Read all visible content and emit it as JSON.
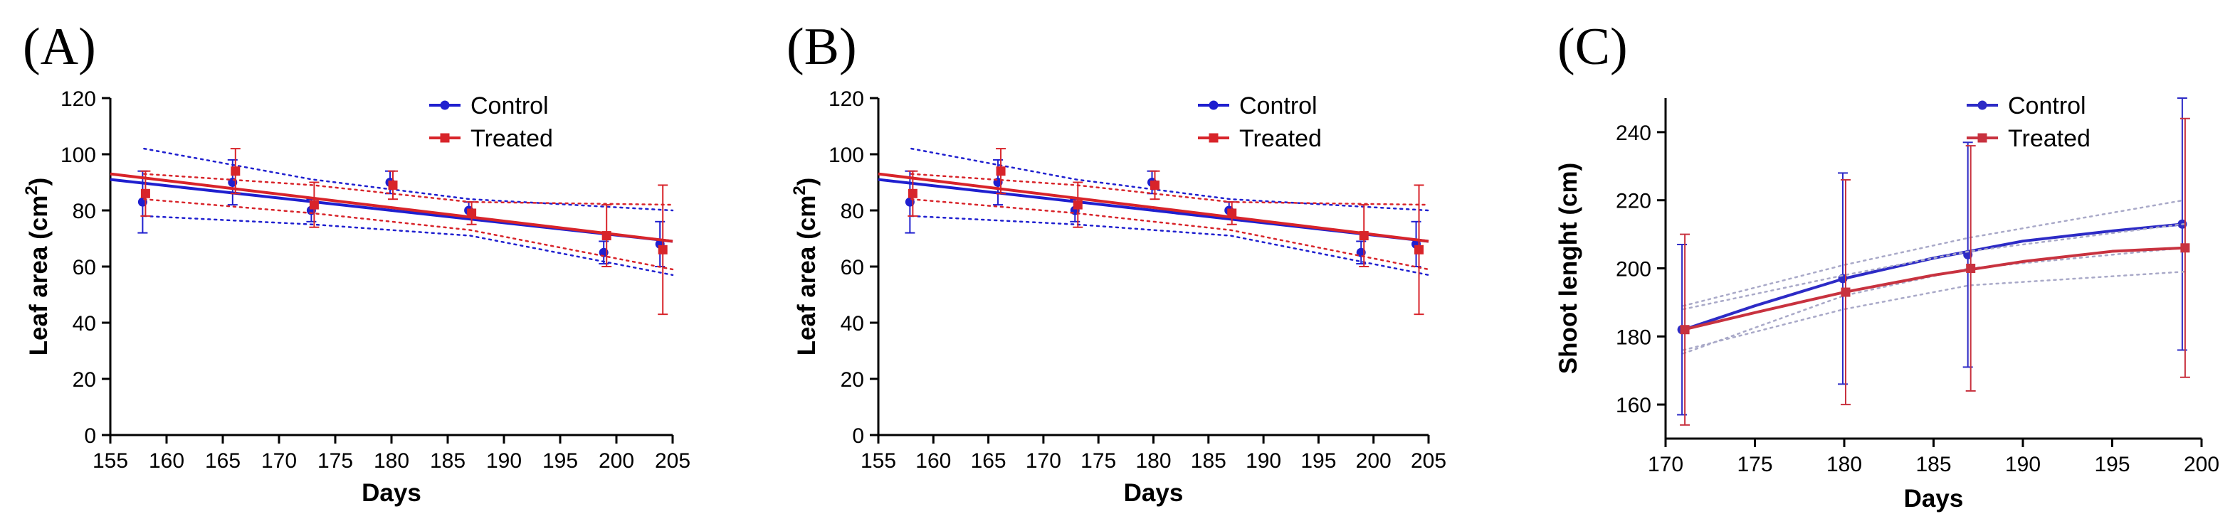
{
  "chart_data": [
    {
      "panel": "(A)",
      "type": "line",
      "xlabel": "Days",
      "ylabel": "Leaf area",
      "ylabel_unit": "(cm",
      "ylabel_sup": "2",
      "ylabel_close": ")",
      "xlim": [
        155,
        205
      ],
      "ylim": [
        0,
        120
      ],
      "xticks": [
        155,
        160,
        165,
        170,
        175,
        180,
        185,
        190,
        195,
        200,
        205
      ],
      "yticks": [
        0,
        20,
        40,
        60,
        80,
        100,
        120
      ],
      "legend": "top-right",
      "series": [
        {
          "name": "Control",
          "color": "#1f1fcf",
          "marker": "circle",
          "x": [
            158,
            166,
            173,
            180,
            187,
            199,
            204
          ],
          "y": [
            83,
            90,
            80,
            90,
            80,
            65,
            68
          ],
          "err": [
            11,
            8,
            4,
            4,
            3,
            4,
            8
          ],
          "fit": [
            [
              155,
              91
            ],
            [
              205,
              69
            ]
          ],
          "ci_upper": [
            [
              158,
              102
            ],
            [
              173,
              91
            ],
            [
              187,
              84
            ],
            [
              205,
              80
            ]
          ],
          "ci_lower": [
            [
              158,
              78
            ],
            [
              173,
              75
            ],
            [
              187,
              71
            ],
            [
              205,
              57
            ]
          ]
        },
        {
          "name": "Treated",
          "color": "#d8242a",
          "marker": "square",
          "x": [
            158,
            166,
            173,
            180,
            187,
            199,
            204
          ],
          "y": [
            86,
            94,
            82,
            89,
            79,
            71,
            66
          ],
          "err": [
            8,
            8,
            8,
            5,
            4,
            11,
            23
          ],
          "fit": [
            [
              155,
              93
            ],
            [
              205,
              69
            ]
          ],
          "ci_upper": [
            [
              158,
              93
            ],
            [
              173,
              89
            ],
            [
              187,
              83
            ],
            [
              205,
              82
            ]
          ],
          "ci_lower": [
            [
              158,
              84
            ],
            [
              173,
              79
            ],
            [
              187,
              73
            ],
            [
              205,
              59
            ]
          ]
        }
      ]
    },
    {
      "panel": "(B)",
      "type": "line",
      "xlabel": "Days",
      "ylabel": "Leaf area",
      "ylabel_unit": "(cm",
      "ylabel_sup": "2",
      "ylabel_close": ")",
      "xlim": [
        155,
        205
      ],
      "ylim": [
        0,
        120
      ],
      "xticks": [
        155,
        160,
        165,
        170,
        175,
        180,
        185,
        190,
        195,
        200,
        205
      ],
      "yticks": [
        0,
        20,
        40,
        60,
        80,
        100,
        120
      ],
      "legend": "top-right",
      "series": [
        {
          "name": "Control",
          "color": "#1f1fcf",
          "marker": "circle",
          "x": [
            158,
            166,
            173,
            180,
            187,
            199,
            204
          ],
          "y": [
            83,
            90,
            80,
            90,
            80,
            65,
            68
          ],
          "err": [
            11,
            8,
            4,
            4,
            3,
            4,
            8
          ],
          "fit": [
            [
              155,
              91
            ],
            [
              205,
              69
            ]
          ],
          "ci_upper": [
            [
              158,
              102
            ],
            [
              173,
              91
            ],
            [
              187,
              84
            ],
            [
              205,
              80
            ]
          ],
          "ci_lower": [
            [
              158,
              78
            ],
            [
              173,
              75
            ],
            [
              187,
              71
            ],
            [
              205,
              57
            ]
          ]
        },
        {
          "name": "Treated",
          "color": "#d8242a",
          "marker": "square",
          "x": [
            158,
            166,
            173,
            180,
            187,
            199,
            204
          ],
          "y": [
            86,
            94,
            82,
            89,
            79,
            71,
            66
          ],
          "err": [
            8,
            8,
            8,
            5,
            4,
            11,
            23
          ],
          "fit": [
            [
              155,
              93
            ],
            [
              205,
              69
            ]
          ],
          "ci_upper": [
            [
              158,
              93
            ],
            [
              173,
              89
            ],
            [
              187,
              83
            ],
            [
              205,
              82
            ]
          ],
          "ci_lower": [
            [
              158,
              84
            ],
            [
              173,
              79
            ],
            [
              187,
              73
            ],
            [
              205,
              59
            ]
          ]
        }
      ]
    },
    {
      "panel": "(C)",
      "type": "line",
      "xlabel": "Days",
      "ylabel": "Shoot lenght (cm)",
      "xlim": [
        170,
        200
      ],
      "ylim": [
        150,
        250
      ],
      "xticks": [
        170,
        175,
        180,
        185,
        190,
        195,
        200
      ],
      "yticks": [
        160,
        180,
        200,
        220,
        240
      ],
      "legend": "top-right",
      "series": [
        {
          "name": "Control",
          "color": "#2d2bc6",
          "marker": "circle",
          "x": [
            171,
            180,
            187,
            199
          ],
          "y": [
            182,
            197,
            204,
            213
          ],
          "err": [
            25,
            31,
            33,
            37
          ],
          "curve": [
            [
              171,
              182
            ],
            [
              175,
              189
            ],
            [
              180,
              197
            ],
            [
              185,
              203
            ],
            [
              190,
              208
            ],
            [
              195,
              211
            ],
            [
              199,
              213
            ]
          ],
          "ci_upper": [
            [
              171,
              189
            ],
            [
              180,
              201
            ],
            [
              187,
              209
            ],
            [
              199,
              220
            ]
          ],
          "ci_lower": [
            [
              171,
              175
            ],
            [
              180,
              192
            ],
            [
              187,
              200
            ],
            [
              199,
              206
            ]
          ]
        },
        {
          "name": "Treated",
          "color": "#c8323f",
          "marker": "square",
          "x": [
            171,
            180,
            187,
            199
          ],
          "y": [
            182,
            193,
            200,
            206
          ],
          "err": [
            28,
            33,
            36,
            38
          ],
          "curve": [
            [
              171,
              182
            ],
            [
              175,
              187
            ],
            [
              180,
              193
            ],
            [
              185,
              198
            ],
            [
              190,
              202
            ],
            [
              195,
              205
            ],
            [
              199,
              206
            ]
          ],
          "ci_upper": [
            [
              171,
              188
            ],
            [
              180,
              198
            ],
            [
              187,
              205
            ],
            [
              199,
              213
            ]
          ],
          "ci_lower": [
            [
              171,
              176
            ],
            [
              180,
              188
            ],
            [
              187,
              195
            ],
            [
              199,
              199
            ]
          ]
        }
      ]
    }
  ]
}
